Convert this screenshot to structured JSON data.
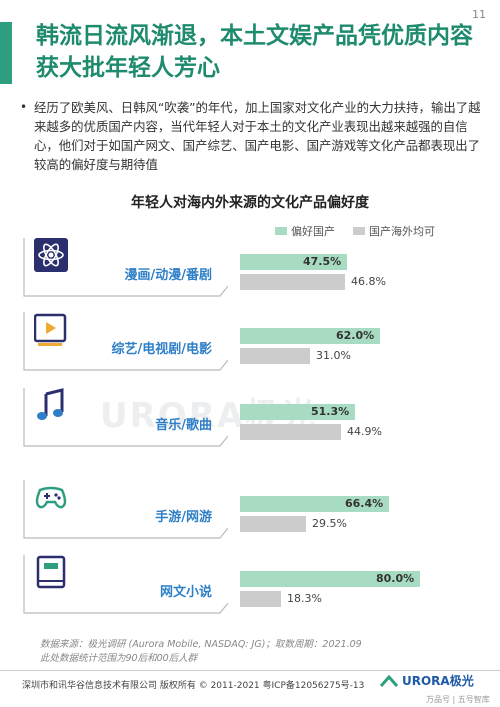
{
  "page_number": "11",
  "title": "韩流日流风渐退，本土文娱产品凭优质内容获大批年轻人芳心",
  "summary": "经历了欧美风、日韩风“吹袭”的年代，加上国家对文化产业的大力扶持，输出了越来越多的优质国产内容，当代年轻人对于本土的文化产业表现出越来越强的自信心，他们对于如国产网文、国产综艺、国产电影、国产游戏等文化产品都表现出了较高的偏好度与期待值",
  "colors": {
    "accent": "#2e9e80",
    "bar_domestic": "#a8dcc2",
    "bar_foreign": "#cccccc",
    "label_blue": "#2e7fc7"
  },
  "chart_data": {
    "type": "bar",
    "orientation": "horizontal",
    "title": "年轻人对海内外来源的文化产品偏好度",
    "legend_position": "top-right",
    "categories": [
      "漫画/动漫/番剧",
      "综艺/电视剧/电影",
      "音乐/歌曲",
      "手游/网游",
      "网文小说"
    ],
    "icons": [
      "atom-icon",
      "play-icon",
      "music-note-icon",
      "gamepad-icon",
      "book-icon"
    ],
    "series": [
      {
        "name": "偏好国产",
        "values": [
          47.5,
          62.0,
          51.3,
          66.4,
          80.0
        ],
        "labels": [
          "47.5%",
          "62.0%",
          "51.3%",
          "66.4%",
          "80.0%"
        ]
      },
      {
        "name": "国产海外均可",
        "values": [
          46.8,
          31.0,
          44.9,
          29.5,
          18.3
        ],
        "labels": [
          "46.8%",
          "31.0%",
          "44.9%",
          "29.5%",
          "18.3%"
        ]
      }
    ],
    "xlim": [
      0,
      100
    ]
  },
  "watermark": "URORA极光",
  "source_line1": "数据来源：极光调研 (Aurora Mobile, NASDAQ: JG)；取数周期：2021.09",
  "source_line2": "此处数据统计范围为90后和00后人群",
  "footer_left": "深圳市和讯华谷信息技术有限公司 版权所有 © 2011-2021 粤ICP备12056275号-13",
  "footer_logo": "URORA极光",
  "footer_wm": "万品号 | 五号智库"
}
